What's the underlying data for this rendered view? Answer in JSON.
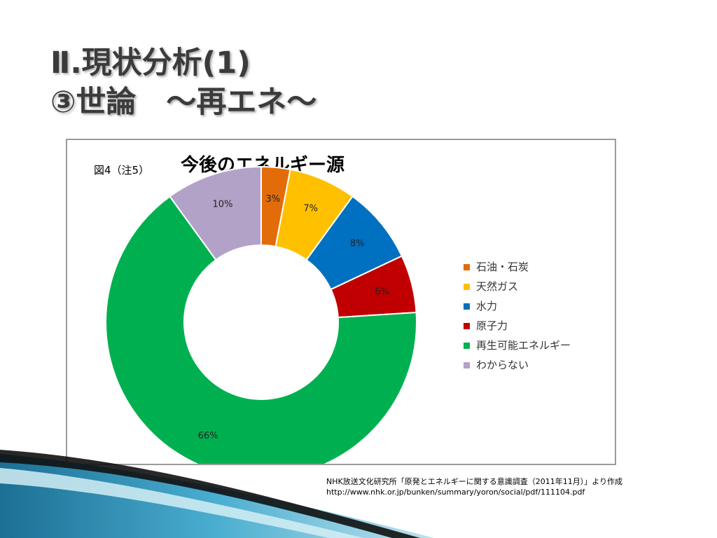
{
  "slide": {
    "title_line1": "Ⅱ.現状分析(1)",
    "title_line2": "③世論　～再エネ～"
  },
  "chart_data": {
    "type": "pie",
    "donut": true,
    "figure_label": "図4（注5）",
    "title": "今後のエネルギー源",
    "legend_position": "right",
    "categories": [
      "石油・石炭",
      "天然ガス",
      "水力",
      "原子力",
      "再生可能エネルギー",
      "わからない"
    ],
    "values": [
      3,
      7,
      8,
      6,
      66,
      10
    ],
    "value_labels": [
      "3%",
      "7%",
      "8%",
      "6%",
      "66%",
      "10%"
    ],
    "colors": [
      "#e36c0a",
      "#ffc000",
      "#0070c0",
      "#c00000",
      "#00b050",
      "#b3a2c7"
    ]
  },
  "source": {
    "line1": "NHK放送文化研究所「原発とエネルギーに関する意識調査（2011年11月）」より作成",
    "line2": "http://www.nhk.or.jp/bunken/summary/yoron/social/pdf/111104.pdf"
  }
}
